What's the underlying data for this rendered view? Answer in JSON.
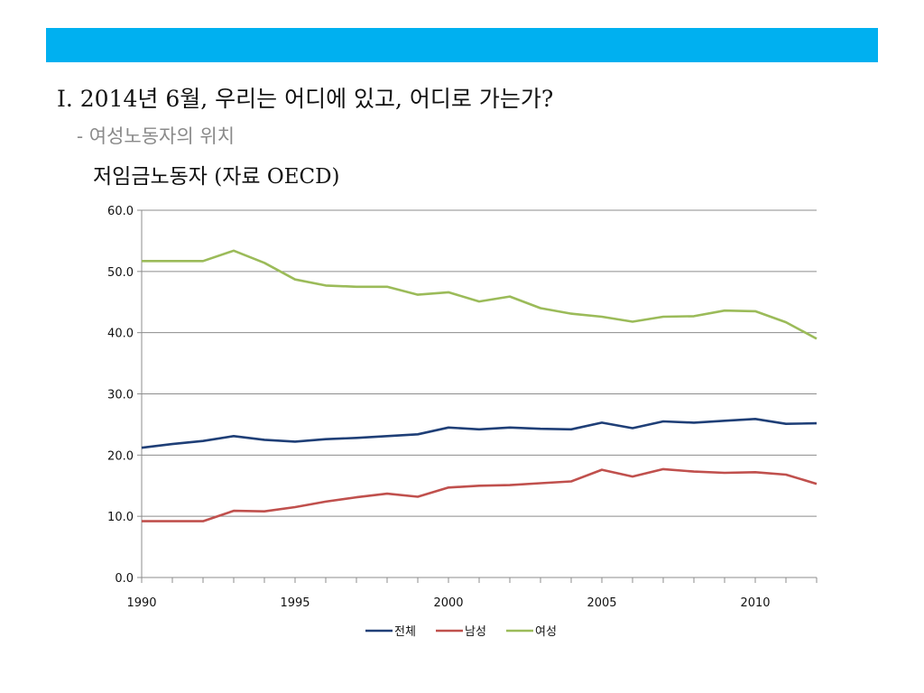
{
  "slide": {
    "title": "I. 2014년 6월, 우리는 어디에 있고, 어디로 가는가?",
    "subtitle": "- 여성노동자의 위치",
    "chart_title": "저임금노동자 (자료 OECD)",
    "header_bar_color": "#00b0f0"
  },
  "chart_data": {
    "type": "line",
    "x": [
      1990,
      1991,
      1992,
      1993,
      1994,
      1995,
      1996,
      1997,
      1998,
      1999,
      2000,
      2001,
      2002,
      2003,
      2004,
      2005,
      2006,
      2007,
      2008,
      2009,
      2010,
      2011,
      2012
    ],
    "xticks": [
      "1990",
      "1995",
      "2000",
      "2005",
      "2010"
    ],
    "yticks": [
      "0.0",
      "10.0",
      "20.0",
      "30.0",
      "40.0",
      "50.0",
      "60.0"
    ],
    "ylim": [
      0,
      60
    ],
    "xlim": [
      1990,
      2012
    ],
    "grid": "horizontal",
    "legend_position": "bottom",
    "series": [
      {
        "name": "전체",
        "color": "#1f3f77",
        "values": [
          21.2,
          21.8,
          22.3,
          23.1,
          22.5,
          22.2,
          22.6,
          22.8,
          23.1,
          23.4,
          24.5,
          24.2,
          24.5,
          24.3,
          24.2,
          25.3,
          24.4,
          25.5,
          25.3,
          25.6,
          25.9,
          25.1,
          25.2
        ]
      },
      {
        "name": "남성",
        "color": "#c0504d",
        "values": [
          9.2,
          9.2,
          9.2,
          10.9,
          10.8,
          11.5,
          12.4,
          13.1,
          13.7,
          13.2,
          14.7,
          15.0,
          15.1,
          15.4,
          15.7,
          17.6,
          16.5,
          17.7,
          17.3,
          17.1,
          17.2,
          16.8,
          15.3
        ]
      },
      {
        "name": "여성",
        "color": "#9bbb59",
        "values": [
          51.7,
          51.7,
          51.7,
          53.4,
          51.4,
          48.7,
          47.7,
          47.5,
          47.5,
          46.2,
          46.6,
          45.1,
          45.9,
          44.0,
          43.1,
          42.6,
          41.8,
          42.6,
          42.7,
          43.6,
          43.5,
          41.7,
          39.0
        ]
      }
    ]
  }
}
